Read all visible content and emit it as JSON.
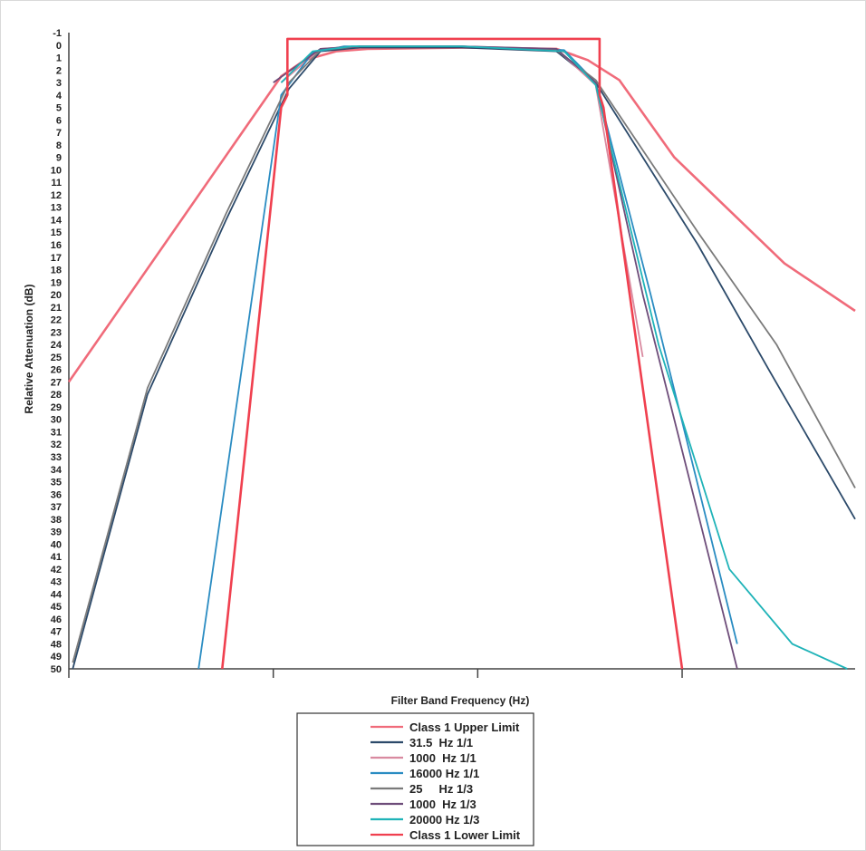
{
  "chart_data": {
    "type": "line",
    "title": "",
    "xlabel": "Filter Band Frequency (Hz)",
    "ylabel": "Relative Attenuation (dB)",
    "ylim": [
      -1,
      50
    ],
    "y_reversed": true,
    "yticks": [
      -1,
      0,
      1,
      2,
      3,
      4,
      5,
      6,
      7,
      8,
      9,
      10,
      11,
      12,
      13,
      14,
      15,
      16,
      17,
      18,
      19,
      20,
      21,
      22,
      23,
      24,
      25,
      26,
      27,
      28,
      29,
      30,
      31,
      32,
      33,
      34,
      35,
      36,
      37,
      38,
      39,
      40,
      41,
      42,
      43,
      44,
      45,
      46,
      47,
      48,
      49,
      50
    ],
    "xlim": [
      0,
      1
    ],
    "x_tick_positions": [
      0.26,
      0.52,
      0.78
    ],
    "grid": false,
    "legend_position": "bottom-center",
    "series": [
      {
        "name": "Class 1 Upper Limit",
        "color": "#f06b7a",
        "x": [
          0.0,
          0.27,
          0.3,
          0.34,
          0.38,
          0.5,
          0.62,
          0.66,
          0.7,
          0.77,
          0.91,
          1.0
        ],
        "y": [
          27,
          2.5,
          1.2,
          0.5,
          0.3,
          0.2,
          0.3,
          1.2,
          2.8,
          9,
          17.5,
          21.3
        ]
      },
      {
        "name": "31.5  Hz 1/1",
        "color": "#2c4a6a",
        "x": [
          0.005,
          0.1,
          0.2,
          0.28,
          0.32,
          0.37,
          0.5,
          0.62,
          0.67,
          0.8,
          0.89,
          1.0
        ],
        "y": [
          50,
          28,
          14,
          3.5,
          0.5,
          0.2,
          0.2,
          0.5,
          3.0,
          16,
          26,
          38
        ]
      },
      {
        "name": "1000  Hz 1/1",
        "color": "#d98aa0",
        "x": [
          0.27,
          0.32,
          0.37,
          0.5,
          0.62,
          0.67,
          0.73
        ],
        "y": [
          3.0,
          0.3,
          0.1,
          0.1,
          0.3,
          3.2,
          25
        ]
      },
      {
        "name": "16000 Hz 1/1",
        "color": "#2a8cc2",
        "x": [
          0.165,
          0.27,
          0.31,
          0.35,
          0.5,
          0.63,
          0.67,
          0.74,
          0.85
        ],
        "y": [
          50,
          4.0,
          0.6,
          0.1,
          0.1,
          0.4,
          3.0,
          20,
          48
        ]
      },
      {
        "name": "25     Hz 1/3",
        "color": "#7a7a7a",
        "x": [
          0.005,
          0.1,
          0.2,
          0.28,
          0.32,
          0.37,
          0.5,
          0.62,
          0.67,
          0.8,
          0.9,
          1.0
        ],
        "y": [
          49.5,
          27.5,
          13.5,
          3.0,
          0.4,
          0.1,
          0.1,
          0.4,
          2.8,
          15,
          24,
          35.5
        ]
      },
      {
        "name": "1000  Hz 1/3",
        "color": "#6e4d7a",
        "x": [
          0.26,
          0.32,
          0.37,
          0.5,
          0.62,
          0.67,
          0.73,
          0.85
        ],
        "y": [
          3.0,
          0.3,
          0.1,
          0.1,
          0.3,
          3.0,
          20,
          50
        ]
      },
      {
        "name": "20000 Hz 1/3",
        "color": "#1fb3b8",
        "x": [
          0.27,
          0.31,
          0.36,
          0.5,
          0.63,
          0.67,
          0.75,
          0.84,
          0.92,
          0.99
        ],
        "y": [
          3.0,
          0.5,
          0.1,
          0.1,
          0.5,
          3.2,
          24,
          42,
          48,
          50
        ]
      },
      {
        "name": "Class 1 Lower Limit",
        "color": "#f0404f",
        "x": [
          0.195,
          0.27,
          0.278,
          0.278,
          0.675,
          0.675,
          0.68,
          0.78
        ],
        "y": [
          50,
          5.0,
          4.0,
          -0.5,
          -0.5,
          4.0,
          5.0,
          50
        ]
      }
    ]
  }
}
